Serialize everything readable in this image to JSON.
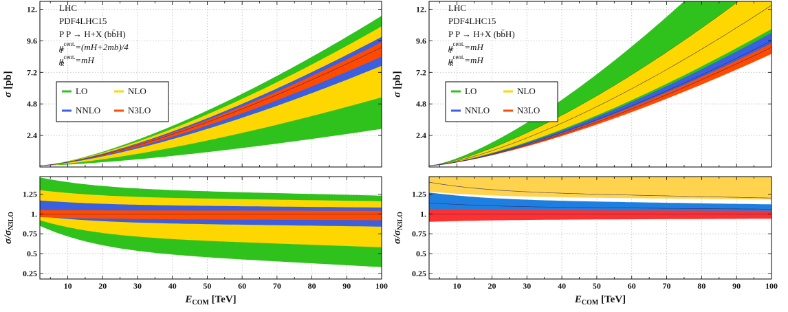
{
  "chart_data": [
    {
      "type": "area",
      "panel": "left-main",
      "annotations": [
        "LHC",
        "PDF4LHC15",
        "P P → H+X (bb̄H)",
        "μF cent. =(mH+2mb)/4",
        "μR cent. =mH"
      ],
      "ylabel": "σ [pb]",
      "xlabel": "",
      "xlim": [
        2,
        100
      ],
      "ylim": [
        0,
        12.6
      ],
      "yticks": [
        "2.4",
        "4.8",
        "7.2",
        "9.6",
        "12."
      ],
      "ytick_values": [
        2.4,
        4.8,
        7.2,
        9.6,
        12.0
      ],
      "xticks": [
        10,
        20,
        30,
        40,
        50,
        60,
        70,
        80,
        90,
        100
      ],
      "grid": true,
      "legend": {
        "placement": "middle-left",
        "entries": [
          "LO",
          "NLO",
          "NNLO",
          "N3LO"
        ]
      },
      "x": [
        2,
        100
      ],
      "exponent": 1.4,
      "series": [
        {
          "name": "LO",
          "color": "#2fc21c",
          "low_end": 2.9,
          "central_end": 6.9,
          "high_end": 11.5,
          "start": 0.1
        },
        {
          "name": "NLO",
          "color": "#ffd700",
          "low_end": 5.3,
          "central_end": 9.0,
          "high_end": 10.7,
          "start": 0.1
        },
        {
          "name": "NNLO",
          "color": "#3a5fe0",
          "low_end": 7.7,
          "central_end": 9.2,
          "high_end": 9.9,
          "start": 0.1
        },
        {
          "name": "N3LO",
          "color": "#ff4a00",
          "low_end": 8.4,
          "central_end": 9.1,
          "high_end": 9.5,
          "start": 0.1
        }
      ]
    },
    {
      "type": "area",
      "panel": "left-ratio",
      "ylabel": "σ/σN3LO",
      "xlabel": "ECOM [TeV]",
      "xlim": [
        2,
        100
      ],
      "ylim": [
        0.18,
        1.47
      ],
      "yticks": [
        "0.25",
        "0.5",
        "0.75",
        "1.",
        "1.25"
      ],
      "ytick_values": [
        0.25,
        0.5,
        0.75,
        1.0,
        1.25
      ],
      "xticks": [
        10,
        20,
        30,
        40,
        50,
        60,
        70,
        80,
        90,
        100
      ],
      "grid": true,
      "series": [
        {
          "name": "LO",
          "color": "#2fc21c",
          "low_start": 0.85,
          "low_end": 0.33,
          "high_start": 1.46,
          "high_end": 1.23,
          "central_start": 1.1,
          "central_end": 0.75
        },
        {
          "name": "NLO",
          "color": "#ffd700",
          "low_start": 0.92,
          "low_end": 0.58,
          "high_start": 1.3,
          "high_end": 1.16,
          "central_start": 1.03,
          "central_end": 1.0
        },
        {
          "name": "NNLO",
          "color": "#3a5fe0",
          "low_start": 0.97,
          "low_end": 0.84,
          "high_start": 1.17,
          "high_end": 1.08,
          "central_start": 1.01,
          "central_end": 1.0
        },
        {
          "name": "N3LO",
          "color": "#ff4a00",
          "low_start": 0.96,
          "low_end": 0.92,
          "high_start": 1.05,
          "high_end": 1.04,
          "central_start": 1.0,
          "central_end": 1.0
        }
      ]
    },
    {
      "type": "area",
      "panel": "right-main",
      "annotations": [
        "LHC",
        "PDF4LHC15",
        "P P → H+X (bb̄H)",
        "μF cent. =mH",
        "μR cent. =mH"
      ],
      "ylabel": "σ [pb]",
      "xlabel": "",
      "xlim": [
        2,
        100
      ],
      "ylim": [
        0,
        12.6
      ],
      "yticks": [
        "2.4",
        "4.8",
        "7.2",
        "9.6",
        "12."
      ],
      "ytick_values": [
        2.4,
        4.8,
        7.2,
        9.6,
        12.0
      ],
      "xticks": [
        10,
        20,
        30,
        40,
        50,
        60,
        70,
        80,
        90,
        100
      ],
      "grid": true,
      "legend": {
        "placement": "middle-left",
        "entries": [
          "LO",
          "NLO",
          "NNLO",
          "N3LO"
        ]
      },
      "x": [
        2,
        100
      ],
      "exponent": 1.4,
      "series": [
        {
          "name": "LO",
          "color": "#2fc21c",
          "low_end": 10.0,
          "central_end": 14.5,
          "high_end": 19.0,
          "start": 0.1
        },
        {
          "name": "NLO",
          "color": "#ffd700",
          "low_end": 10.5,
          "central_end": 12.3,
          "high_end": 14.5,
          "start": 0.1
        },
        {
          "name": "NNLO",
          "color": "#3a5fe0",
          "low_end": 9.0,
          "central_end": 9.6,
          "high_end": 10.2,
          "start": 0.1
        },
        {
          "name": "N3LO",
          "color": "#ff4a00",
          "low_end": 8.6,
          "central_end": 9.1,
          "high_end": 9.4,
          "start": 0.1
        }
      ]
    },
    {
      "type": "area",
      "panel": "right-ratio",
      "ylabel": "σ/σN3LO",
      "xlabel": "ECOM [TeV]",
      "xlim": [
        2,
        100
      ],
      "ylim": [
        0.18,
        1.47
      ],
      "yticks": [
        "0.25",
        "0.5",
        "0.75",
        "1.",
        "1.25"
      ],
      "ytick_values": [
        0.25,
        0.5,
        0.75,
        1.0,
        1.25
      ],
      "xticks": [
        10,
        20,
        30,
        40,
        50,
        60,
        70,
        80,
        90,
        100
      ],
      "grid": true,
      "series": [
        {
          "name": "LO",
          "color": "#2fc21c",
          "low_start": 1.48,
          "low_end": 1.48,
          "high_start": 1.48,
          "high_end": 1.48,
          "central_start": 1.46,
          "central_end": 1.31
        },
        {
          "name": "NLO",
          "color": "#ffd34d",
          "low_start": 1.28,
          "low_end": 1.18,
          "high_start": 1.48,
          "high_end": 1.48,
          "central_start": 1.4,
          "central_end": 1.2
        },
        {
          "name": "NNLO",
          "color": "#1f7fe0",
          "low_start": 0.97,
          "low_end": 0.98,
          "high_start": 1.27,
          "high_end": 1.12,
          "central_start": 1.14,
          "central_end": 1.06
        },
        {
          "name": "N3LO",
          "color": "#ff3030",
          "low_start": 0.9,
          "low_end": 0.94,
          "high_start": 1.06,
          "high_end": 1.04,
          "central_start": 1.0,
          "central_end": 1.0
        }
      ]
    }
  ]
}
